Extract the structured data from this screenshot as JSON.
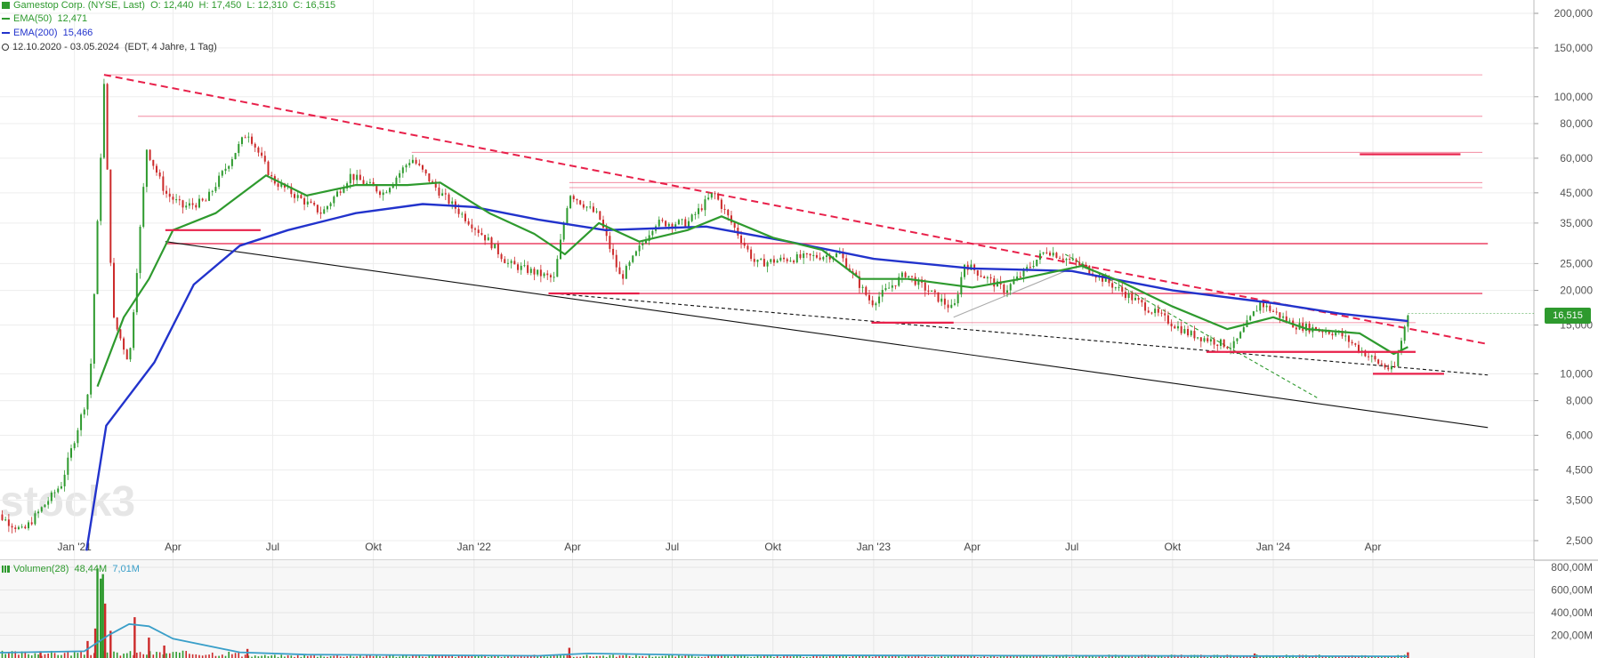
{
  "header": {
    "symbol_line": "Gamestop Corp. (NYSE, Last)",
    "open": "O: 12,440",
    "high": "H: 17,450",
    "low": "L: 12,310",
    "close": "C: 16,515",
    "ema50_label": "EMA(50)",
    "ema50_value": "12,471",
    "ema200_label": "EMA(200)",
    "ema200_value": "15,466",
    "range": "12.10.2020 - 03.05.2024",
    "range_note": "(EDT, 4 Jahre, 1 Tag)"
  },
  "watermark": "stock3",
  "last_price_label": "16,515",
  "volume_header": {
    "label": "Volumen(28)",
    "value1": "48,44M",
    "value2": "7,01M"
  },
  "colors": {
    "ema50": "#2e9a2e",
    "ema200": "#2233cc",
    "resistance": "#e8204a",
    "up": "#2e9a2e",
    "down": "#cc2a2a",
    "volume_avg": "#3a9fc9"
  },
  "chart_data": [
    {
      "type": "candlestick",
      "scale": "log",
      "ylim": [
        2300,
        220000
      ],
      "x_ticks": [
        "Jan '21",
        "Apr",
        "Jul",
        "Okt",
        "Jan '22",
        "Apr",
        "Jul",
        "Okt",
        "Jan '23",
        "Apr",
        "Jul",
        "Okt",
        "Jan '24",
        "Apr"
      ],
      "y_ticks": [
        {
          "value": 200000,
          "label": "200,000"
        },
        {
          "value": 150000,
          "label": "150,000"
        },
        {
          "value": 100000,
          "label": "100,000"
        },
        {
          "value": 80000,
          "label": "80,000"
        },
        {
          "value": 60000,
          "label": "60,000"
        },
        {
          "value": 45000,
          "label": "45,000"
        },
        {
          "value": 35000,
          "label": "35,000"
        },
        {
          "value": 25000,
          "label": "25,000"
        },
        {
          "value": 20000,
          "label": "20,000"
        },
        {
          "value": 15000,
          "label": "15,000"
        },
        {
          "value": 10000,
          "label": "10,000"
        },
        {
          "value": 8000,
          "label": "8,000"
        },
        {
          "value": 6000,
          "label": "6,000"
        },
        {
          "value": 4500,
          "label": "4,500"
        },
        {
          "value": 3500,
          "label": "3,500"
        },
        {
          "value": 2500,
          "label": "2,500"
        }
      ],
      "price_path": [
        [
          "2020-10-12",
          3.3
        ],
        [
          "2020-11-15",
          2.7
        ],
        [
          "2020-12-20",
          4.0
        ],
        [
          "2021-01-15",
          9.0
        ],
        [
          "2021-01-28",
          110
        ],
        [
          "2021-02-05",
          16
        ],
        [
          "2021-02-20",
          11
        ],
        [
          "2021-03-08",
          65
        ],
        [
          "2021-03-25",
          45
        ],
        [
          "2021-04-10",
          40
        ],
        [
          "2021-05-01",
          42
        ],
        [
          "2021-06-08",
          75
        ],
        [
          "2021-07-01",
          50
        ],
        [
          "2021-08-15",
          38
        ],
        [
          "2021-09-10",
          52
        ],
        [
          "2021-10-10",
          45
        ],
        [
          "2021-11-05",
          60
        ],
        [
          "2021-12-01",
          45
        ],
        [
          "2022-01-15",
          30
        ],
        [
          "2022-02-01",
          25
        ],
        [
          "2022-03-15",
          22
        ],
        [
          "2022-03-29",
          45
        ],
        [
          "2022-04-25",
          37
        ],
        [
          "2022-05-15",
          22
        ],
        [
          "2022-06-15",
          35
        ],
        [
          "2022-07-15",
          35
        ],
        [
          "2022-08-08",
          45
        ],
        [
          "2022-09-15",
          25
        ],
        [
          "2022-10-15",
          26
        ],
        [
          "2022-12-01",
          27
        ],
        [
          "2022-12-30",
          18
        ],
        [
          "2023-01-30",
          23
        ],
        [
          "2023-03-15",
          17
        ],
        [
          "2023-03-25",
          25
        ],
        [
          "2023-05-01",
          20
        ],
        [
          "2023-06-08",
          28
        ],
        [
          "2023-07-15",
          24
        ],
        [
          "2023-09-01",
          18
        ],
        [
          "2023-10-15",
          14
        ],
        [
          "2023-11-25",
          12.5
        ],
        [
          "2023-12-20",
          18
        ],
        [
          "2024-01-20",
          15
        ],
        [
          "2024-03-01",
          14
        ],
        [
          "2024-04-05",
          11
        ],
        [
          "2024-04-20",
          10.2
        ],
        [
          "2024-05-03",
          16.5
        ]
      ],
      "ema50_path": [
        [
          "2021-01-22",
          9
        ],
        [
          "2021-02-15",
          16
        ],
        [
          "2021-03-10",
          22
        ],
        [
          "2021-04-01",
          33
        ],
        [
          "2021-05-10",
          38
        ],
        [
          "2021-06-25",
          52
        ],
        [
          "2021-08-01",
          44
        ],
        [
          "2021-09-15",
          48
        ],
        [
          "2021-11-01",
          48
        ],
        [
          "2021-12-01",
          49
        ],
        [
          "2022-01-15",
          38
        ],
        [
          "2022-02-25",
          32
        ],
        [
          "2022-03-25",
          27
        ],
        [
          "2022-04-25",
          35
        ],
        [
          "2022-06-01",
          30
        ],
        [
          "2022-07-15",
          33
        ],
        [
          "2022-08-15",
          37
        ],
        [
          "2022-10-01",
          31
        ],
        [
          "2022-11-15",
          28
        ],
        [
          "2022-12-20",
          22
        ],
        [
          "2023-02-01",
          22
        ],
        [
          "2023-04-01",
          20.5
        ],
        [
          "2023-05-15",
          22
        ],
        [
          "2023-07-10",
          24.5
        ],
        [
          "2023-08-15",
          21.5
        ],
        [
          "2023-10-01",
          17.5
        ],
        [
          "2023-11-20",
          14.5
        ],
        [
          "2024-01-01",
          16
        ],
        [
          "2024-02-01",
          14.5
        ],
        [
          "2024-03-20",
          14
        ],
        [
          "2024-04-20",
          11.8
        ],
        [
          "2024-05-03",
          12.5
        ]
      ],
      "ema200_path": [
        [
          "2021-01-12",
          2.3
        ],
        [
          "2021-01-30",
          6.5
        ],
        [
          "2021-03-15",
          11
        ],
        [
          "2021-04-20",
          21
        ],
        [
          "2021-06-01",
          29
        ],
        [
          "2021-07-15",
          33
        ],
        [
          "2021-09-15",
          38
        ],
        [
          "2021-11-15",
          41
        ],
        [
          "2022-01-01",
          40
        ],
        [
          "2022-03-01",
          36
        ],
        [
          "2022-05-01",
          33
        ],
        [
          "2022-08-01",
          34
        ],
        [
          "2022-10-15",
          30
        ],
        [
          "2023-01-01",
          26
        ],
        [
          "2023-04-01",
          24
        ],
        [
          "2023-07-01",
          23.5
        ],
        [
          "2023-10-01",
          20
        ],
        [
          "2024-01-01",
          18
        ],
        [
          "2024-03-01",
          16.5
        ],
        [
          "2024-05-03",
          15.5
        ]
      ],
      "trendlines": [
        {
          "style": "dashed",
          "color": "#e8204a",
          "from": [
            "2021-01-28",
            120
          ],
          "to": [
            "2024-07-15",
            12.8
          ]
        },
        {
          "style": "solid",
          "color": "#111111",
          "from": [
            "2021-03-25",
            30
          ],
          "to": [
            "2024-07-15",
            6.4
          ]
        },
        {
          "style": "dashed",
          "color": "#111111",
          "from": [
            "2022-03-15",
            19.5
          ],
          "to": [
            "2024-07-15",
            9.9
          ]
        },
        {
          "style": "dashed",
          "color": "#2e9a2e",
          "from": [
            "2023-06-25",
            27
          ],
          "to": [
            "2024-02-10",
            8.2
          ]
        },
        {
          "style": "solid",
          "color": "#aaaaaa",
          "from": [
            "2023-03-15",
            16
          ],
          "to": [
            "2023-07-01",
            24
          ]
        }
      ],
      "horizontal_levels": [
        {
          "value": 120,
          "from": "2021-01-28",
          "to": "2024-07-10",
          "weight": "thin"
        },
        {
          "value": 85,
          "from": "2021-02-28",
          "to": "2024-07-10",
          "weight": "thin"
        },
        {
          "value": 63,
          "from": "2021-11-05",
          "to": "2024-07-10",
          "weight": "thin"
        },
        {
          "value": 49,
          "from": "2022-03-29",
          "to": "2024-07-10",
          "weight": "thin"
        },
        {
          "value": 47,
          "from": "2022-03-29",
          "to": "2024-07-10",
          "weight": "thin"
        },
        {
          "value": 29.5,
          "from": "2021-03-25",
          "to": "2024-07-15",
          "weight": "medium"
        },
        {
          "value": 19.5,
          "from": "2022-03-10",
          "to": "2024-07-10",
          "weight": "medium"
        },
        {
          "value": 15.3,
          "from": "2022-12-30",
          "to": "2024-05-10",
          "weight": "thin"
        }
      ],
      "support_segments": [
        {
          "value": 33,
          "from": "2021-03-25",
          "to": "2021-06-20"
        },
        {
          "value": 19.5,
          "from": "2022-03-10",
          "to": "2022-06-01"
        },
        {
          "value": 15.3,
          "from": "2022-12-30",
          "to": "2023-03-15"
        },
        {
          "value": 12,
          "from": "2023-11-01",
          "to": "2024-05-10"
        },
        {
          "value": 10,
          "from": "2024-04-01",
          "to": "2024-06-05"
        },
        {
          "value": 62,
          "from": "2024-03-20",
          "to": "2024-06-20"
        }
      ],
      "last_price": 16.515
    },
    {
      "type": "bar",
      "name": "Volumen(28)",
      "ylim": [
        0,
        800000000
      ],
      "y_ticks": [
        {
          "value": 800000000,
          "label": "800,00M"
        },
        {
          "value": 600000000,
          "label": "600,00M"
        },
        {
          "value": 400000000,
          "label": "400,00M"
        },
        {
          "value": 200000000,
          "label": "200,00M"
        }
      ],
      "spikes": [
        [
          "2020-12-01",
          60000000
        ],
        [
          "2021-01-13",
          150000000
        ],
        [
          "2021-01-20",
          260000000
        ],
        [
          "2021-01-22",
          790000000
        ],
        [
          "2021-01-25",
          700000000
        ],
        [
          "2021-01-27",
          740000000
        ],
        [
          "2021-01-29",
          480000000
        ],
        [
          "2021-02-03",
          240000000
        ],
        [
          "2021-02-25",
          360000000
        ],
        [
          "2021-03-10",
          180000000
        ],
        [
          "2021-03-24",
          110000000
        ],
        [
          "2021-06-08",
          80000000
        ],
        [
          "2022-03-29",
          90000000
        ],
        [
          "2023-12-15",
          40000000
        ],
        [
          "2024-05-03",
          50000000
        ]
      ],
      "avg_path": [
        [
          "2020-10-12",
          45000000
        ],
        [
          "2021-01-10",
          60000000
        ],
        [
          "2021-02-01",
          200000000
        ],
        [
          "2021-02-20",
          300000000
        ],
        [
          "2021-03-10",
          280000000
        ],
        [
          "2021-04-01",
          170000000
        ],
        [
          "2021-06-01",
          50000000
        ],
        [
          "2021-08-01",
          30000000
        ],
        [
          "2022-03-01",
          20000000
        ],
        [
          "2022-04-15",
          40000000
        ],
        [
          "2022-08-01",
          25000000
        ],
        [
          "2024-05-03",
          15000000
        ]
      ]
    }
  ]
}
